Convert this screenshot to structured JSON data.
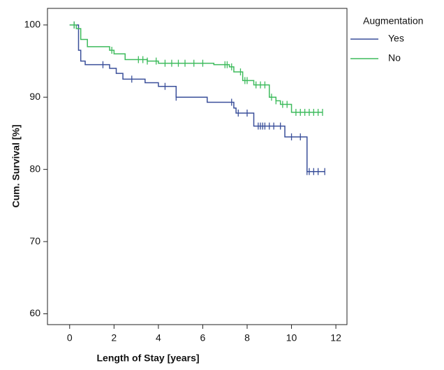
{
  "chart_data": {
    "type": "survival",
    "x_label": "Length of Stay [years]",
    "y_label": "Cum. Survival [%]",
    "legend_title": "Augmentation",
    "legend_position": "outside-right",
    "xlim": [
      -1,
      12.5
    ],
    "xticks": [
      0,
      2,
      4,
      6,
      8,
      10,
      12
    ],
    "ylim": [
      58.5,
      102.3
    ],
    "yticks": [
      60,
      70,
      80,
      90,
      100
    ],
    "series": [
      {
        "name": "Yes",
        "color": "#3a4f9a",
        "x": [
          0,
          0.4,
          0.5,
          0.7,
          1.8,
          2.1,
          2.4,
          3.4,
          4.0,
          4.8,
          6.2,
          7.4,
          7.5,
          8.3,
          9.7,
          10.7,
          11.5
        ],
        "values": [
          100,
          96.5,
          95,
          94.5,
          94,
          93.3,
          92.5,
          92,
          91.5,
          90,
          89.3,
          88.5,
          87.8,
          86,
          84.5,
          79.7,
          79.7
        ],
        "censored": [
          0.2,
          1.5,
          2.8,
          4.3,
          4.8,
          7.3,
          7.6,
          8.0,
          8.5,
          8.6,
          8.7,
          8.8,
          9.0,
          9.2,
          9.5,
          10.0,
          10.4,
          10.7,
          10.8,
          11.0,
          11.2,
          11.5
        ]
      },
      {
        "name": "No",
        "color": "#3dbb5c",
        "x": [
          0,
          0.3,
          0.5,
          0.8,
          1.8,
          2.0,
          2.5,
          3.5,
          4.0,
          6.5,
          7.2,
          7.4,
          7.8,
          8.3,
          9.0,
          9.3,
          9.5,
          10.0,
          11.4
        ],
        "values": [
          100,
          99.5,
          98,
          97,
          96.5,
          96,
          95.2,
          95,
          94.7,
          94.5,
          94.2,
          93.5,
          92.3,
          91.7,
          90,
          89.5,
          89,
          87.9,
          87.9
        ],
        "censored": [
          0.2,
          1.9,
          3.1,
          3.3,
          3.5,
          3.9,
          4.3,
          4.6,
          4.9,
          5.2,
          5.6,
          6.0,
          7.0,
          7.1,
          7.3,
          7.7,
          7.9,
          8.0,
          8.4,
          8.6,
          8.8,
          9.1,
          9.3,
          9.6,
          9.8,
          10.2,
          10.4,
          10.6,
          10.8,
          11.0,
          11.2,
          11.4
        ]
      }
    ]
  }
}
